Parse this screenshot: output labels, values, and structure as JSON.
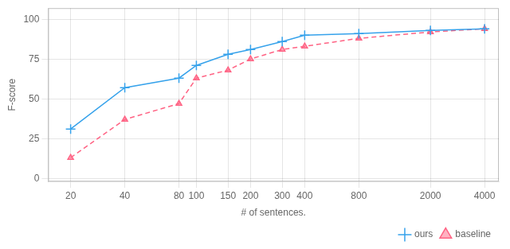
{
  "chart_data": {
    "type": "line",
    "xlabel": "# of sentences.",
    "ylabel": "F-score",
    "x": [
      20,
      40,
      80,
      100,
      150,
      200,
      300,
      400,
      800,
      2000,
      4000
    ],
    "series": [
      {
        "name": "ours",
        "values": [
          31,
          57,
          63,
          71,
          78,
          81,
          86,
          90,
          91,
          93,
          94
        ],
        "marker": "plus",
        "line_style": "solid"
      },
      {
        "name": "baseline",
        "values": [
          13,
          37,
          47,
          63,
          68,
          75,
          81,
          83,
          88,
          92,
          94
        ],
        "marker": "triangle",
        "line_style": "dashed"
      }
    ],
    "xlim": [
      15,
      4800
    ],
    "xticks": [
      20,
      40,
      80,
      100,
      150,
      200,
      300,
      400,
      800,
      2000,
      4000
    ],
    "ylim": [
      -2,
      107
    ],
    "yticks": [
      0,
      25,
      50,
      75,
      100
    ],
    "log": "x",
    "grid": true,
    "legend": "lower right"
  }
}
